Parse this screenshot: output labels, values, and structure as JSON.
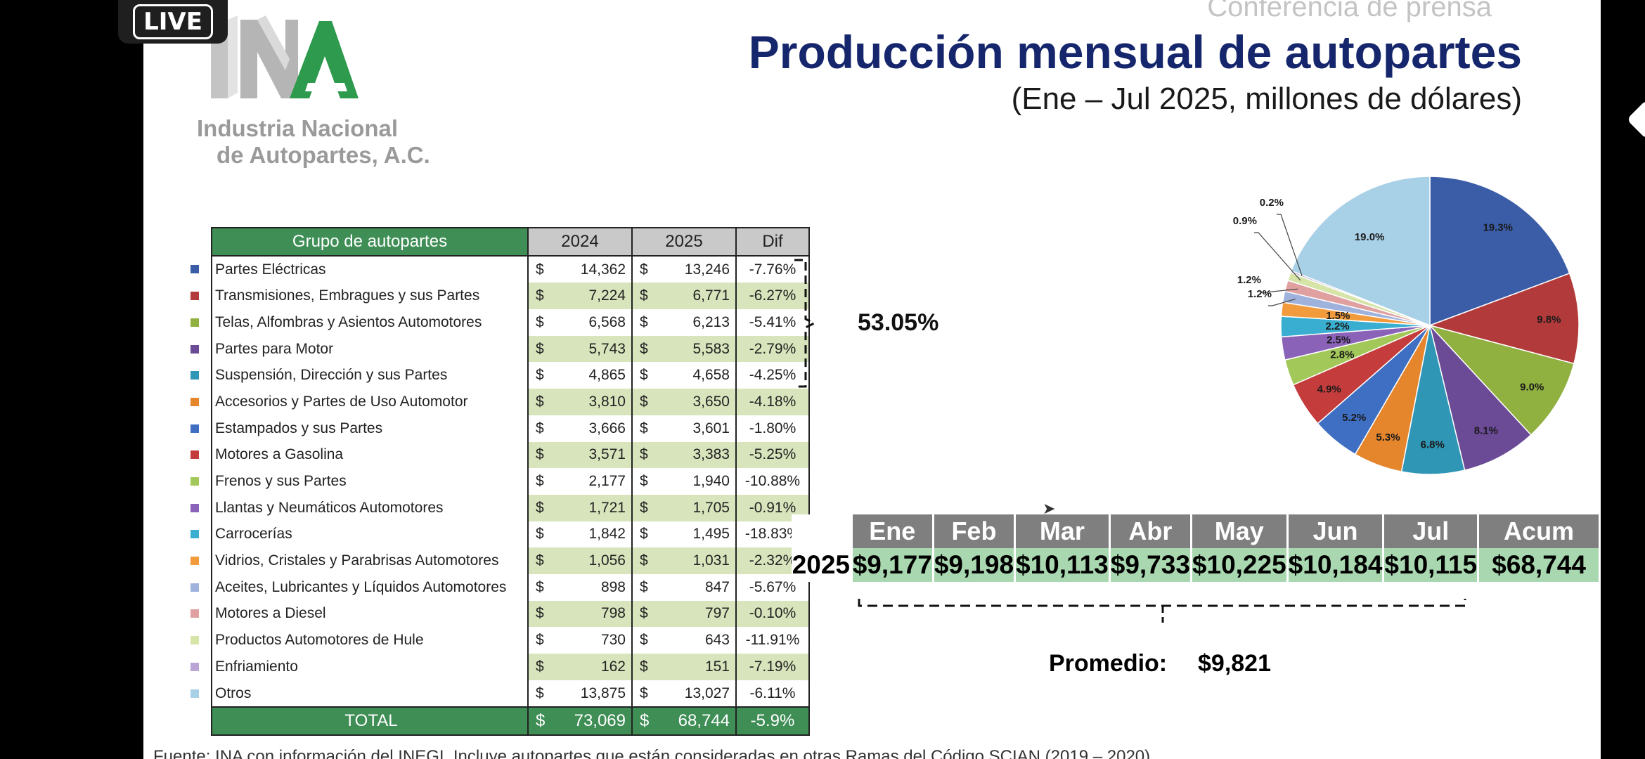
{
  "live_badge": "LIVE",
  "slide": {
    "conference_label": "Conferencia de prensa",
    "title": "Producción mensual de autopartes",
    "subtitle": "(Ene – Jul 2025, millones de dólares)",
    "logo": {
      "text_line1": "Industria Nacional",
      "text_line2": "de Autopartes, A.C.",
      "colors": {
        "letters": "#b8b8b8",
        "accent": "#2e9a4e"
      }
    },
    "bracket_percent": "53.05%",
    "footer": "Fuente: INA con información del INEGI. Incluye autopartes que están consideradas en otras Ramas del Código SCIAN (2019 – 2020)"
  },
  "table": {
    "headers": {
      "group": "Grupo de autopartes",
      "y2024": "2024",
      "y2025": "2025",
      "dif": "Dif"
    },
    "currency": "$",
    "rows": [
      {
        "name": "Partes Eléctricas",
        "v2024": "14,362",
        "v2025": "13,246",
        "dif": "-7.76%",
        "color": "#3b5da8"
      },
      {
        "name": "Transmisiones, Embragues y sus Partes",
        "v2024": "7,224",
        "v2025": "6,771",
        "dif": "-6.27%",
        "color": "#b33a3a"
      },
      {
        "name": "Telas, Alfombras y Asientos Automotores",
        "v2024": "6,568",
        "v2025": "6,213",
        "dif": "-5.41%",
        "color": "#90b040"
      },
      {
        "name": "Partes para Motor",
        "v2024": "5,743",
        "v2025": "5,583",
        "dif": "-2.79%",
        "color": "#6b4a96"
      },
      {
        "name": "Suspensión, Dirección y sus Partes",
        "v2024": "4,865",
        "v2025": "4,658",
        "dif": "-4.25%",
        "color": "#2f96b6"
      },
      {
        "name": "Accesorios y Partes de Uso Automotor",
        "v2024": "3,810",
        "v2025": "3,650",
        "dif": "-4.18%",
        "color": "#e5852c"
      },
      {
        "name": "Estampados y sus Partes",
        "v2024": "3,666",
        "v2025": "3,601",
        "dif": "-1.80%",
        "color": "#3f6fc2"
      },
      {
        "name": "Motores a Gasolina",
        "v2024": "3,571",
        "v2025": "3,383",
        "dif": "-5.25%",
        "color": "#c43c3c"
      },
      {
        "name": "Frenos y sus Partes",
        "v2024": "2,177",
        "v2025": "1,940",
        "dif": "-10.88%",
        "color": "#a3c85a"
      },
      {
        "name": "Llantas y Neumáticos Automotores",
        "v2024": "1,721",
        "v2025": "1,705",
        "dif": "-0.91%",
        "color": "#8a62b8"
      },
      {
        "name": "Carrocerías",
        "v2024": "1,842",
        "v2025": "1,495",
        "dif": "-18.83%",
        "color": "#3aaed0"
      },
      {
        "name": "Vidrios, Cristales y Parabrisas Automotores",
        "v2024": "1,056",
        "v2025": "1,031",
        "dif": "-2.32%",
        "color": "#f29b3c"
      },
      {
        "name": "Aceites, Lubricantes y Líquidos Automotores",
        "v2024": "898",
        "v2025": "847",
        "dif": "-5.67%",
        "color": "#9fb2dc"
      },
      {
        "name": "Motores a Diesel",
        "v2024": "798",
        "v2025": "797",
        "dif": "-0.10%",
        "color": "#e0a0a0"
      },
      {
        "name": "Productos Automotores de Hule",
        "v2024": "730",
        "v2025": "643",
        "dif": "-11.91%",
        "color": "#d6e4a8"
      },
      {
        "name": "Enfriamiento",
        "v2024": "162",
        "v2025": "151",
        "dif": "-7.19%",
        "color": "#b9a6d6"
      },
      {
        "name": "Otros",
        "v2024": "13,875",
        "v2025": "13,027",
        "dif": "-6.11%",
        "color": "#a8d0e6"
      }
    ],
    "total": {
      "label": "TOTAL",
      "v2024": "73,069",
      "v2025": "68,744",
      "dif": "-5.9%"
    }
  },
  "monthly": {
    "year_label": "2025",
    "headers": [
      "Ene",
      "Feb",
      "Mar",
      "Abr",
      "May",
      "Jun",
      "Jul",
      "Acum"
    ],
    "values": [
      "$9,177",
      "$9,198",
      "$10,113",
      "$9,733",
      "$10,225",
      "$10,184",
      "$10,115",
      "$68,744"
    ],
    "average_label": "Promedio:",
    "average_value": "$9,821"
  },
  "chart_data": {
    "type": "pie",
    "title": "",
    "labels": [
      "Partes Eléctricas",
      "Transmisiones, Embragues y sus Partes",
      "Telas, Alfombras y Asientos Automotores",
      "Partes para Motor",
      "Suspensión, Dirección y sus Partes",
      "Accesorios y Partes de Uso Automotor",
      "Estampados y sus Partes",
      "Motores a Gasolina",
      "Frenos y sus Partes",
      "Llantas y Neumáticos Automotores",
      "Carrocerías",
      "Vidrios, Cristales y Parabrisas Automotores",
      "Aceites, Lubricantes y Líquidos Automotores",
      "Motores a Diesel",
      "Productos Automotores de Hule",
      "Enfriamiento",
      "Otros"
    ],
    "values": [
      19.3,
      9.8,
      9.0,
      8.1,
      6.8,
      5.3,
      5.2,
      4.9,
      2.8,
      2.5,
      2.2,
      1.5,
      1.2,
      1.2,
      0.9,
      0.2,
      19.0
    ],
    "value_labels": [
      "19.3%",
      "9.8%",
      "9.0%",
      "8.1%",
      "6.8%",
      "5.3%",
      "5.2%",
      "4.9%",
      "2.8%",
      "2.5%",
      "2.2%",
      "1.5%",
      "1.2%",
      "1.2%",
      "0.9%",
      "0.2%",
      "19.0%"
    ],
    "colors": [
      "#3b5da8",
      "#b33a3a",
      "#90b040",
      "#6b4a96",
      "#2f96b6",
      "#e5852c",
      "#3f6fc2",
      "#c43c3c",
      "#a3c85a",
      "#8a62b8",
      "#3aaed0",
      "#f29b3c",
      "#9fb2dc",
      "#e0a0a0",
      "#d6e4a8",
      "#b9a6d6",
      "#a8d0e6"
    ],
    "start": "12 o'clock, clockwise"
  }
}
